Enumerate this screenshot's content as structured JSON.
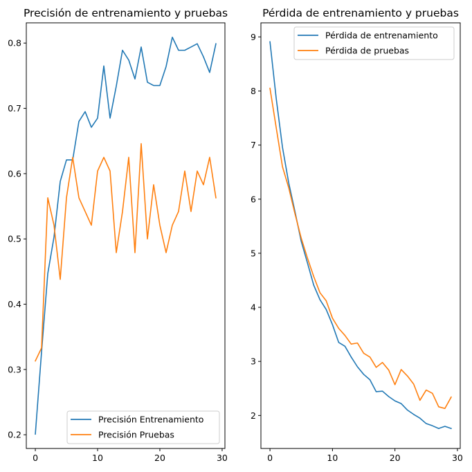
{
  "chart_data": [
    {
      "type": "line",
      "title": "Precisión de entrenamiento y pruebas",
      "xlabel": "",
      "ylabel": "",
      "xlim": [
        -1.45,
        30.45
      ],
      "ylim": [
        0.179,
        0.831
      ],
      "xticks": [
        0,
        10,
        20,
        30
      ],
      "yticks": [
        0.2,
        0.3,
        0.4,
        0.5,
        0.6,
        0.7,
        0.8
      ],
      "ytick_labels": [
        "0.2",
        "0.3",
        "0.4",
        "0.5",
        "0.6",
        "0.7",
        "0.8"
      ],
      "legend_position": "lower right",
      "series": [
        {
          "name": "Precisión Entrenamiento",
          "color": "#1f77b4",
          "x": [
            0,
            1,
            2,
            3,
            4,
            5,
            6,
            7,
            8,
            9,
            10,
            11,
            12,
            13,
            14,
            15,
            16,
            17,
            18,
            19,
            20,
            21,
            22,
            23,
            24,
            25,
            26,
            27,
            28,
            29
          ],
          "values": [
            0.201,
            0.327,
            0.447,
            0.503,
            0.588,
            0.621,
            0.621,
            0.68,
            0.695,
            0.671,
            0.685,
            0.765,
            0.685,
            0.734,
            0.789,
            0.774,
            0.745,
            0.794,
            0.74,
            0.735,
            0.735,
            0.764,
            0.809,
            0.789,
            0.789,
            0.794,
            0.799,
            0.779,
            0.755,
            0.799
          ]
        },
        {
          "name": "Precisión Pruebas",
          "color": "#ff7f0e",
          "x": [
            0,
            1,
            2,
            3,
            4,
            5,
            6,
            7,
            8,
            9,
            10,
            11,
            12,
            13,
            14,
            15,
            16,
            17,
            18,
            19,
            20,
            21,
            22,
            23,
            24,
            25,
            26,
            27,
            28,
            29
          ],
          "values": [
            0.313,
            0.333,
            0.563,
            0.521,
            0.438,
            0.563,
            0.625,
            0.563,
            0.542,
            0.521,
            0.604,
            0.625,
            0.604,
            0.479,
            0.542,
            0.625,
            0.479,
            0.646,
            0.5,
            0.583,
            0.521,
            0.479,
            0.521,
            0.542,
            0.604,
            0.542,
            0.604,
            0.583,
            0.625,
            0.563
          ]
        }
      ]
    },
    {
      "type": "line",
      "title": "Pérdida de entrenamiento y pruebas",
      "xlabel": "",
      "ylabel": "",
      "xlim": [
        -1.45,
        30.45
      ],
      "ylim": [
        1.39,
        9.26
      ],
      "xticks": [
        0,
        10,
        20,
        30
      ],
      "yticks": [
        2,
        3,
        4,
        5,
        6,
        7,
        8,
        9
      ],
      "ytick_labels": [
        "2",
        "3",
        "4",
        "5",
        "6",
        "7",
        "8",
        "9"
      ],
      "legend_position": "upper right",
      "series": [
        {
          "name": "Pérdida de entrenamiento",
          "color": "#1f77b4",
          "x": [
            0,
            1,
            2,
            3,
            4,
            5,
            6,
            7,
            8,
            9,
            10,
            11,
            12,
            13,
            14,
            15,
            16,
            17,
            18,
            19,
            20,
            21,
            22,
            23,
            24,
            25,
            26,
            27,
            28,
            29
          ],
          "values": [
            8.91,
            7.86,
            6.96,
            6.3,
            5.77,
            5.22,
            4.82,
            4.41,
            4.14,
            3.96,
            3.68,
            3.35,
            3.28,
            3.08,
            2.9,
            2.76,
            2.66,
            2.44,
            2.45,
            2.35,
            2.27,
            2.22,
            2.1,
            2.02,
            1.95,
            1.85,
            1.81,
            1.76,
            1.8,
            1.76
          ]
        },
        {
          "name": "Pérdida de pruebas",
          "color": "#ff7f0e",
          "x": [
            0,
            1,
            2,
            3,
            4,
            5,
            6,
            7,
            8,
            9,
            10,
            11,
            12,
            13,
            14,
            15,
            16,
            17,
            18,
            19,
            20,
            21,
            22,
            23,
            24,
            25,
            26,
            27,
            28,
            29
          ],
          "values": [
            8.05,
            7.32,
            6.6,
            6.21,
            5.73,
            5.28,
            4.91,
            4.57,
            4.27,
            4.12,
            3.8,
            3.61,
            3.48,
            3.32,
            3.34,
            3.15,
            3.08,
            2.89,
            2.98,
            2.84,
            2.57,
            2.85,
            2.73,
            2.58,
            2.28,
            2.47,
            2.41,
            2.16,
            2.13,
            2.34
          ]
        }
      ]
    }
  ]
}
